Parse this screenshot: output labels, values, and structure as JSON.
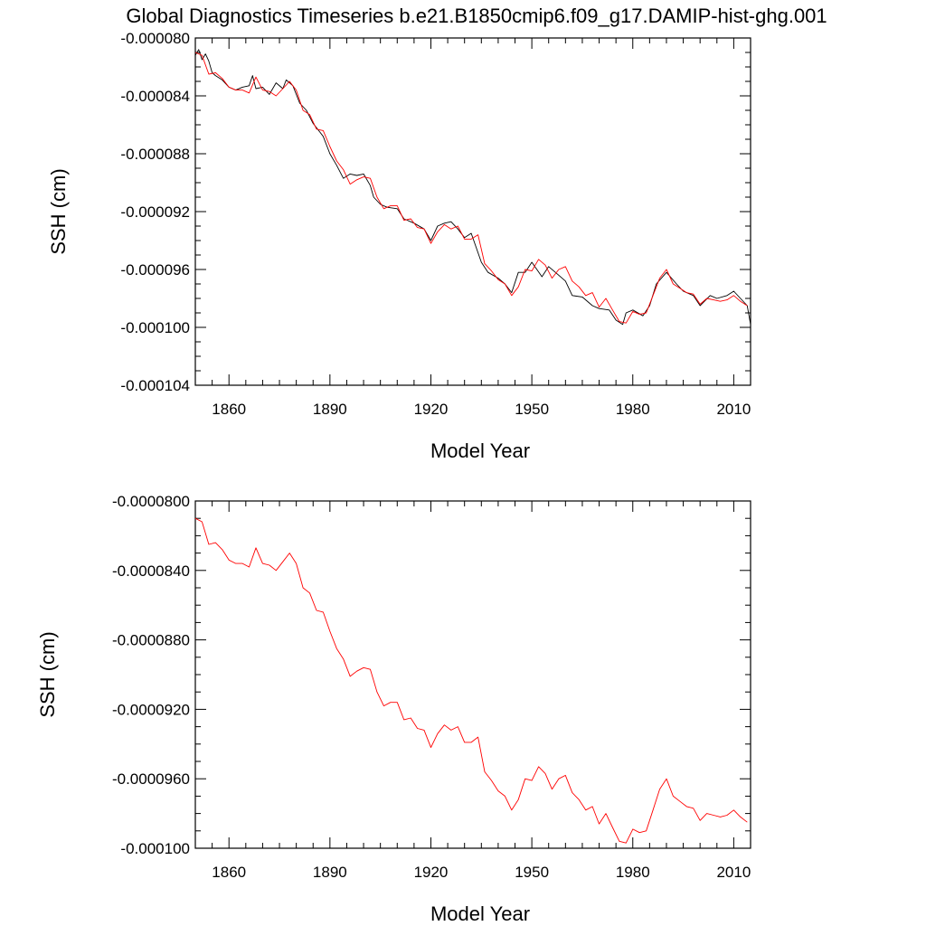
{
  "page": {
    "title": "Global Diagnostics Timeseries b.e21.B1850cmip6.f09_g17.DAMIP-hist-ghg.001"
  },
  "chart_data": [
    {
      "type": "line",
      "title": "Global Diagnostics Timeseries b.e21.B1850cmip6.f09_g17.DAMIP-hist-ghg.001",
      "xlabel": "Model Year",
      "ylabel": "SSH (cm)",
      "xlim": [
        1850,
        2015
      ],
      "ylim": [
        -0.000104,
        -8e-05
      ],
      "xticks": [
        1860,
        1890,
        1920,
        1950,
        1980,
        2010
      ],
      "xtick_labels": [
        "1860",
        "1890",
        "1920",
        "1950",
        "1980",
        "2010"
      ],
      "yticks": [
        -8e-05,
        -8.4e-05,
        -8.8e-05,
        -9.2e-05,
        -9.6e-05,
        -0.0001,
        -0.000104
      ],
      "ytick_labels": [
        "-0.000080",
        "-0.000084",
        "-0.000088",
        "-0.000092",
        "-0.000096",
        "-0.000100",
        "-0.000104"
      ],
      "grid": false,
      "series": [
        {
          "color": "#000000",
          "x": [
            1850,
            1851,
            1852,
            1853,
            1854,
            1855,
            1856,
            1858,
            1860,
            1862,
            1864,
            1866,
            1867,
            1868,
            1870,
            1872,
            1874,
            1876,
            1877,
            1879,
            1881,
            1883,
            1885,
            1887,
            1888,
            1890,
            1892,
            1894,
            1896,
            1898,
            1900,
            1902,
            1903,
            1905,
            1907,
            1910,
            1912,
            1915,
            1918,
            1920,
            1922,
            1924,
            1926,
            1928,
            1930,
            1932,
            1935,
            1937,
            1940,
            1942,
            1944,
            1946,
            1948,
            1950,
            1953,
            1955,
            1957,
            1960,
            1962,
            1965,
            1968,
            1970,
            1973,
            1975,
            1977,
            1978,
            1980,
            1983,
            1985,
            1987,
            1990,
            1993,
            1995,
            1998,
            2000,
            2003,
            2005,
            2008,
            2010,
            2012,
            2014,
            2015
          ],
          "y": [
            -8.12e-05,
            -8.08e-05,
            -8.15e-05,
            -8.11e-05,
            -8.16e-05,
            -8.24e-05,
            -8.26e-05,
            -8.29e-05,
            -8.34e-05,
            -8.36e-05,
            -8.34e-05,
            -8.33e-05,
            -8.26e-05,
            -8.35e-05,
            -8.34e-05,
            -8.39e-05,
            -8.31e-05,
            -8.35e-05,
            -8.29e-05,
            -8.33e-05,
            -8.45e-05,
            -8.5e-05,
            -8.59e-05,
            -8.65e-05,
            -8.68e-05,
            -8.8e-05,
            -8.88e-05,
            -8.97e-05,
            -8.94e-05,
            -8.95e-05,
            -8.94e-05,
            -9.02e-05,
            -9.1e-05,
            -9.15e-05,
            -9.17e-05,
            -9.18e-05,
            -9.25e-05,
            -9.28e-05,
            -9.32e-05,
            -9.4e-05,
            -9.3e-05,
            -9.28e-05,
            -9.27e-05,
            -9.32e-05,
            -9.38e-05,
            -9.35e-05,
            -9.55e-05,
            -9.62e-05,
            -9.66e-05,
            -9.7e-05,
            -9.76e-05,
            -9.62e-05,
            -9.62e-05,
            -9.55e-05,
            -9.65e-05,
            -9.58e-05,
            -9.62e-05,
            -9.68e-05,
            -9.78e-05,
            -9.79e-05,
            -9.85e-05,
            -9.87e-05,
            -9.88e-05,
            -9.95e-05,
            -9.98e-05,
            -9.9e-05,
            -9.88e-05,
            -9.92e-05,
            -9.85e-05,
            -9.7e-05,
            -9.62e-05,
            -9.7e-05,
            -9.75e-05,
            -9.78e-05,
            -9.85e-05,
            -9.78e-05,
            -9.8e-05,
            -9.78e-05,
            -9.75e-05,
            -9.8e-05,
            -9.85e-05,
            -9.98e-05
          ]
        },
        {
          "color": "#ff0000",
          "x": [
            1850,
            1852,
            1854,
            1856,
            1858,
            1860,
            1862,
            1864,
            1866,
            1868,
            1870,
            1872,
            1874,
            1876,
            1878,
            1880,
            1882,
            1884,
            1886,
            1888,
            1890,
            1892,
            1894,
            1896,
            1898,
            1900,
            1902,
            1904,
            1906,
            1908,
            1910,
            1912,
            1914,
            1916,
            1918,
            1920,
            1922,
            1924,
            1926,
            1928,
            1930,
            1932,
            1934,
            1936,
            1938,
            1940,
            1942,
            1944,
            1946,
            1948,
            1950,
            1952,
            1954,
            1956,
            1958,
            1960,
            1962,
            1964,
            1966,
            1968,
            1970,
            1972,
            1974,
            1976,
            1978,
            1980,
            1982,
            1984,
            1986,
            1988,
            1990,
            1992,
            1994,
            1996,
            1998,
            2000,
            2002,
            2004,
            2006,
            2008,
            2010,
            2012,
            2014
          ],
          "y": [
            -8.1e-05,
            -8.12e-05,
            -8.25e-05,
            -8.24e-05,
            -8.28e-05,
            -8.34e-05,
            -8.36e-05,
            -8.36e-05,
            -8.38e-05,
            -8.27e-05,
            -8.36e-05,
            -8.37e-05,
            -8.4e-05,
            -8.35e-05,
            -8.3e-05,
            -8.36e-05,
            -8.5e-05,
            -8.53e-05,
            -8.63e-05,
            -8.64e-05,
            -8.75e-05,
            -8.85e-05,
            -8.91e-05,
            -9.01e-05,
            -8.98e-05,
            -8.96e-05,
            -8.97e-05,
            -9.1e-05,
            -9.18e-05,
            -9.16e-05,
            -9.16e-05,
            -9.26e-05,
            -9.25e-05,
            -9.31e-05,
            -9.32e-05,
            -9.42e-05,
            -9.34e-05,
            -9.29e-05,
            -9.32e-05,
            -9.3e-05,
            -9.39e-05,
            -9.39e-05,
            -9.36e-05,
            -9.56e-05,
            -9.61e-05,
            -9.67e-05,
            -9.7e-05,
            -9.78e-05,
            -9.72e-05,
            -9.6e-05,
            -9.61e-05,
            -9.53e-05,
            -9.57e-05,
            -9.66e-05,
            -9.6e-05,
            -9.58e-05,
            -9.68e-05,
            -9.72e-05,
            -9.78e-05,
            -9.76e-05,
            -9.86e-05,
            -9.8e-05,
            -9.88e-05,
            -9.96e-05,
            -9.97e-05,
            -9.89e-05,
            -9.91e-05,
            -9.9e-05,
            -9.78e-05,
            -9.66e-05,
            -9.6e-05,
            -9.7e-05,
            -9.73e-05,
            -9.76e-05,
            -9.77e-05,
            -9.84e-05,
            -9.8e-05,
            -9.81e-05,
            -9.82e-05,
            -9.81e-05,
            -9.78e-05,
            -9.82e-05,
            -9.85e-05
          ]
        }
      ]
    },
    {
      "type": "line",
      "xlabel": "Model Year",
      "ylabel": "SSH (cm)",
      "xlim": [
        1850,
        2015
      ],
      "ylim": [
        -0.0001,
        -8e-05
      ],
      "xticks": [
        1860,
        1890,
        1920,
        1950,
        1980,
        2010
      ],
      "xtick_labels": [
        "1860",
        "1890",
        "1920",
        "1950",
        "1980",
        "2010"
      ],
      "yticks": [
        -8e-05,
        -8.4e-05,
        -8.8e-05,
        -9.2e-05,
        -9.6e-05,
        -0.0001
      ],
      "ytick_labels": [
        "-0.0000800",
        "-0.0000840",
        "-0.0000880",
        "-0.0000920",
        "-0.0000960",
        "-0.000100"
      ],
      "grid": false,
      "series": [
        {
          "color": "#ff0000",
          "x": [
            1850,
            1852,
            1854,
            1856,
            1858,
            1860,
            1862,
            1864,
            1866,
            1868,
            1870,
            1872,
            1874,
            1876,
            1878,
            1880,
            1882,
            1884,
            1886,
            1888,
            1890,
            1892,
            1894,
            1896,
            1898,
            1900,
            1902,
            1904,
            1906,
            1908,
            1910,
            1912,
            1914,
            1916,
            1918,
            1920,
            1922,
            1924,
            1926,
            1928,
            1930,
            1932,
            1934,
            1936,
            1938,
            1940,
            1942,
            1944,
            1946,
            1948,
            1950,
            1952,
            1954,
            1956,
            1958,
            1960,
            1962,
            1964,
            1966,
            1968,
            1970,
            1972,
            1974,
            1976,
            1978,
            1980,
            1982,
            1984,
            1986,
            1988,
            1990,
            1992,
            1994,
            1996,
            1998,
            2000,
            2002,
            2004,
            2006,
            2008,
            2010,
            2012,
            2014
          ],
          "y": [
            -8.1e-05,
            -8.12e-05,
            -8.25e-05,
            -8.24e-05,
            -8.28e-05,
            -8.34e-05,
            -8.36e-05,
            -8.36e-05,
            -8.38e-05,
            -8.27e-05,
            -8.36e-05,
            -8.37e-05,
            -8.4e-05,
            -8.35e-05,
            -8.3e-05,
            -8.36e-05,
            -8.5e-05,
            -8.53e-05,
            -8.63e-05,
            -8.64e-05,
            -8.75e-05,
            -8.85e-05,
            -8.91e-05,
            -9.01e-05,
            -8.98e-05,
            -8.96e-05,
            -8.97e-05,
            -9.1e-05,
            -9.18e-05,
            -9.16e-05,
            -9.16e-05,
            -9.26e-05,
            -9.25e-05,
            -9.31e-05,
            -9.32e-05,
            -9.42e-05,
            -9.34e-05,
            -9.29e-05,
            -9.32e-05,
            -9.3e-05,
            -9.39e-05,
            -9.39e-05,
            -9.36e-05,
            -9.56e-05,
            -9.61e-05,
            -9.67e-05,
            -9.7e-05,
            -9.78e-05,
            -9.72e-05,
            -9.6e-05,
            -9.61e-05,
            -9.53e-05,
            -9.57e-05,
            -9.66e-05,
            -9.6e-05,
            -9.58e-05,
            -9.68e-05,
            -9.72e-05,
            -9.78e-05,
            -9.76e-05,
            -9.86e-05,
            -9.8e-05,
            -9.88e-05,
            -9.96e-05,
            -9.97e-05,
            -9.89e-05,
            -9.91e-05,
            -9.9e-05,
            -9.78e-05,
            -9.66e-05,
            -9.6e-05,
            -9.7e-05,
            -9.73e-05,
            -9.76e-05,
            -9.77e-05,
            -9.84e-05,
            -9.8e-05,
            -9.81e-05,
            -9.82e-05,
            -9.81e-05,
            -9.78e-05,
            -9.82e-05,
            -9.85e-05
          ]
        }
      ]
    }
  ]
}
